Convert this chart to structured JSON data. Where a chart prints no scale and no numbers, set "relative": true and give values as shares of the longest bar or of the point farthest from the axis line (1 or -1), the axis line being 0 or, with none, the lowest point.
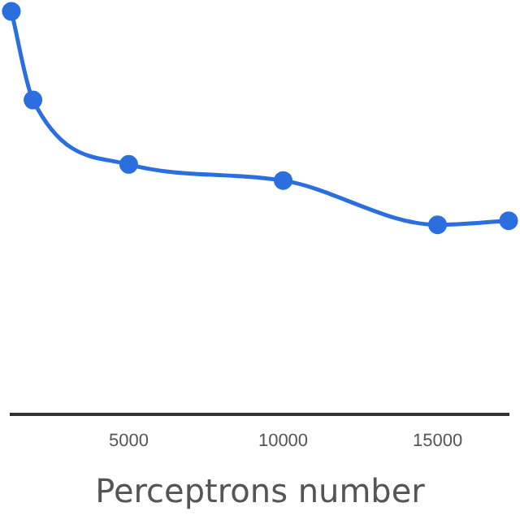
{
  "chart_data": {
    "type": "line",
    "xlabel": "Perceptrons number",
    "relative": true,
    "x": [
      1200,
      1900,
      5000,
      10000,
      15000,
      17300
    ],
    "series": [
      {
        "color": "#2b6fdf",
        "values": [
          1,
          0.78,
          0.62,
          0.58,
          0.47,
          0.48
        ]
      }
    ],
    "xlim": [
      1200,
      17300
    ],
    "xticks": [
      5000,
      10000,
      15000
    ],
    "marker": "circle",
    "grid": false,
    "legend": false
  }
}
